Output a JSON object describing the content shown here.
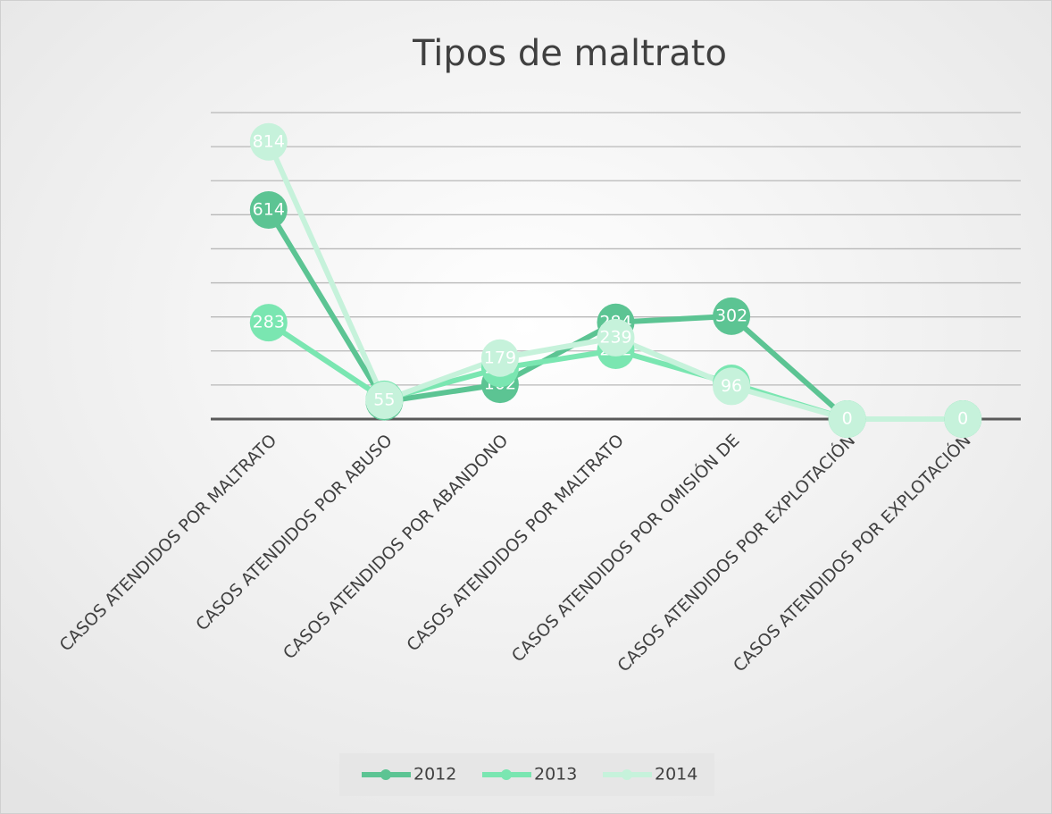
{
  "chart_data": {
    "type": "line",
    "title": "Tipos de maltrato",
    "categories": [
      "CASOS ATENDIDOS POR MALTRATO",
      "CASOS ATENDIDOS POR ABUSO",
      "CASOS ATENDIDOS POR ABANDONO",
      "CASOS ATENDIDOS POR MALTRATO",
      "CASOS ATENDIDOS POR OMISIÓN DE",
      "CASOS ATENDIDOS POR EXPLOTACIÓN",
      "CASOS ATENDIDOS POR EXPLOTACIÓN"
    ],
    "series": [
      {
        "name": "2012",
        "color": "#5cc493",
        "values": [
          614,
          51,
          102,
          284,
          302,
          0,
          0
        ]
      },
      {
        "name": "2013",
        "color": "#7ae6b1",
        "values": [
          283,
          58,
          149,
          202,
          105,
          0,
          0
        ]
      },
      {
        "name": "2014",
        "color": "#c6f2db",
        "values": [
          814,
          55,
          179,
          239,
          96,
          0,
          0
        ]
      }
    ],
    "ylim": [
      0,
      900
    ],
    "yticks": [
      0,
      100,
      200,
      300,
      400,
      500,
      600,
      700,
      800,
      900
    ],
    "grid": true,
    "legend": "bottom"
  }
}
